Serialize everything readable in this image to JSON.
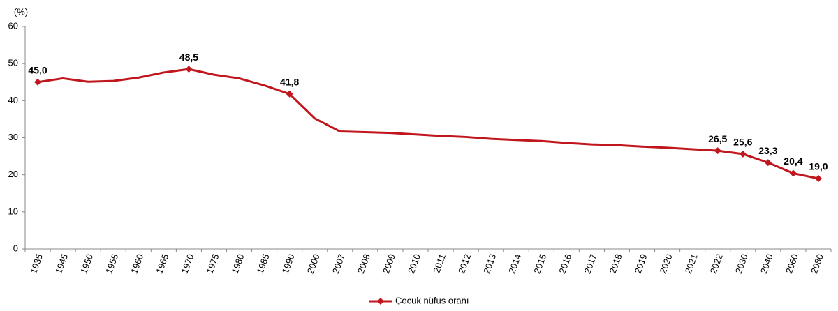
{
  "chart_data": {
    "type": "line",
    "y_unit": "(%)",
    "categories": [
      "1935",
      "1945",
      "1950",
      "1955",
      "1960",
      "1965",
      "1970",
      "1975",
      "1980",
      "1985",
      "1990",
      "2000",
      "2007",
      "2008",
      "2009",
      "2010",
      "2011",
      "2012",
      "2013",
      "2014",
      "2015",
      "2016",
      "2017",
      "2018",
      "2019",
      "2020",
      "2021",
      "2022",
      "2030",
      "2040",
      "2060",
      "2080"
    ],
    "series": [
      {
        "name": "Çocuk nüfus oranı",
        "color": "#c0161e",
        "values": [
          45.0,
          46.0,
          45.1,
          45.3,
          46.2,
          47.6,
          48.5,
          47.0,
          46.0,
          44.1,
          41.8,
          35.2,
          31.7,
          31.5,
          31.3,
          30.9,
          30.5,
          30.2,
          29.7,
          29.4,
          29.1,
          28.6,
          28.2,
          28.0,
          27.6,
          27.3,
          26.9,
          26.5,
          25.6,
          23.3,
          20.4,
          19.0
        ],
        "value_labels": [
          "45,0",
          null,
          null,
          null,
          null,
          null,
          "48,5",
          null,
          null,
          null,
          "41,8",
          null,
          null,
          null,
          null,
          null,
          null,
          null,
          null,
          null,
          null,
          null,
          null,
          null,
          null,
          null,
          null,
          "26,5",
          "25,6",
          "23,3",
          "20,4",
          "19,0"
        ]
      }
    ],
    "ylim": [
      0,
      60
    ],
    "yticks": [
      0,
      10,
      20,
      30,
      40,
      50,
      60
    ],
    "grid": false,
    "legend": "bottom"
  }
}
